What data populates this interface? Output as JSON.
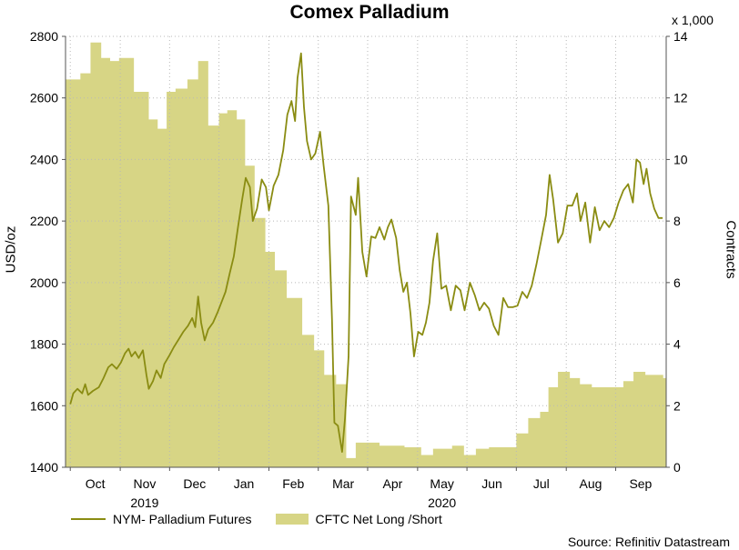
{
  "chart_data": {
    "type": "line",
    "title": "Comex Palladium",
    "ylabel_left": "USD/oz",
    "ylabel_right": "Contracts",
    "right_axis_multiplier": "x 1,000",
    "source": "Source: Refinitiv Datastream",
    "x_ticks": [
      "Oct",
      "Nov",
      "Dec",
      "Jan",
      "Feb",
      "Mar",
      "Apr",
      "May",
      "Jun",
      "Jul",
      "Aug",
      "Sep"
    ],
    "year_labels": [
      "2019",
      "2020"
    ],
    "ylim_left": [
      1400,
      2800
    ],
    "ylim_right": [
      0,
      14
    ],
    "yticks_left": [
      "1400",
      "1600",
      "1800",
      "2000",
      "2200",
      "2400",
      "2600",
      "2800"
    ],
    "yticks_right": [
      "0",
      "2",
      "4",
      "6",
      "8",
      "10",
      "12",
      "14"
    ],
    "grid": true,
    "legend_position": "bottom",
    "colors": {
      "line": "#8a8c12",
      "area": "#d7d585",
      "grid": "#b8b8b8"
    },
    "series": [
      {
        "name": "NYM- Palladium Futures",
        "kind": "line",
        "axis": "left",
        "points": [
          [
            2019.708,
            1605
          ],
          [
            2019.713,
            1640
          ],
          [
            2019.72,
            1655
          ],
          [
            2019.728,
            1640
          ],
          [
            2019.733,
            1670
          ],
          [
            2019.738,
            1635
          ],
          [
            2019.746,
            1648
          ],
          [
            2019.756,
            1660
          ],
          [
            2019.764,
            1690
          ],
          [
            2019.772,
            1725
          ],
          [
            2019.778,
            1735
          ],
          [
            2019.786,
            1720
          ],
          [
            2019.793,
            1740
          ],
          [
            2019.8,
            1770
          ],
          [
            2019.806,
            1785
          ],
          [
            2019.811,
            1760
          ],
          [
            2019.817,
            1775
          ],
          [
            2019.823,
            1755
          ],
          [
            2019.83,
            1780
          ],
          [
            2019.836,
            1700
          ],
          [
            2019.84,
            1655
          ],
          [
            2019.847,
            1680
          ],
          [
            2019.853,
            1715
          ],
          [
            2019.86,
            1690
          ],
          [
            2019.866,
            1735
          ],
          [
            2019.875,
            1765
          ],
          [
            2019.882,
            1790
          ],
          [
            2019.89,
            1815
          ],
          [
            2019.898,
            1840
          ],
          [
            2019.906,
            1860
          ],
          [
            2019.913,
            1885
          ],
          [
            2019.918,
            1855
          ],
          [
            2019.923,
            1955
          ],
          [
            2019.928,
            1870
          ],
          [
            2019.934,
            1812
          ],
          [
            2019.94,
            1848
          ],
          [
            2019.948,
            1870
          ],
          [
            2019.956,
            1905
          ],
          [
            2019.962,
            1935
          ],
          [
            2019.969,
            1970
          ],
          [
            2019.976,
            2030
          ],
          [
            2019.983,
            2085
          ],
          [
            2019.99,
            2180
          ],
          [
            2019.997,
            2270
          ],
          [
            2020.003,
            2340
          ],
          [
            2020.01,
            2310
          ],
          [
            2020.015,
            2200
          ],
          [
            2020.022,
            2240
          ],
          [
            2020.03,
            2335
          ],
          [
            2020.037,
            2310
          ],
          [
            2020.042,
            2235
          ],
          [
            2020.05,
            2315
          ],
          [
            2020.058,
            2350
          ],
          [
            2020.066,
            2430
          ],
          [
            2020.073,
            2545
          ],
          [
            2020.08,
            2590
          ],
          [
            2020.086,
            2525
          ],
          [
            2020.09,
            2665
          ],
          [
            2020.096,
            2745
          ],
          [
            2020.101,
            2570
          ],
          [
            2020.106,
            2460
          ],
          [
            2020.113,
            2400
          ],
          [
            2020.12,
            2420
          ],
          [
            2020.128,
            2490
          ],
          [
            2020.134,
            2380
          ],
          [
            2020.142,
            2250
          ],
          [
            2020.148,
            1880
          ],
          [
            2020.152,
            1545
          ],
          [
            2020.158,
            1535
          ],
          [
            2020.165,
            1450
          ],
          [
            2020.17,
            1560
          ],
          [
            2020.176,
            1760
          ],
          [
            2020.18,
            2280
          ],
          [
            2020.188,
            2220
          ],
          [
            2020.192,
            2340
          ],
          [
            2020.199,
            2100
          ],
          [
            2020.206,
            2020
          ],
          [
            2020.214,
            2150
          ],
          [
            2020.221,
            2145
          ],
          [
            2020.228,
            2180
          ],
          [
            2020.236,
            2140
          ],
          [
            2020.242,
            2180
          ],
          [
            2020.248,
            2205
          ],
          [
            2020.256,
            2145
          ],
          [
            2020.262,
            2040
          ],
          [
            2020.268,
            1970
          ],
          [
            2020.274,
            2000
          ],
          [
            2020.28,
            1900
          ],
          [
            2020.286,
            1760
          ],
          [
            2020.293,
            1840
          ],
          [
            2020.3,
            1830
          ],
          [
            2020.306,
            1870
          ],
          [
            2020.312,
            1935
          ],
          [
            2020.318,
            2070
          ],
          [
            2020.325,
            2160
          ],
          [
            2020.332,
            1980
          ],
          [
            2020.34,
            1990
          ],
          [
            2020.348,
            1910
          ],
          [
            2020.356,
            1990
          ],
          [
            2020.364,
            1975
          ],
          [
            2020.371,
            1910
          ],
          [
            2020.38,
            2000
          ],
          [
            2020.388,
            1960
          ],
          [
            2020.396,
            1910
          ],
          [
            2020.404,
            1935
          ],
          [
            2020.412,
            1915
          ],
          [
            2020.42,
            1860
          ],
          [
            2020.428,
            1830
          ],
          [
            2020.436,
            1950
          ],
          [
            2020.444,
            1920
          ],
          [
            2020.452,
            1920
          ],
          [
            2020.46,
            1925
          ],
          [
            2020.468,
            1970
          ],
          [
            2020.476,
            1950
          ],
          [
            2020.484,
            1990
          ],
          [
            2020.492,
            2060
          ],
          [
            2020.5,
            2140
          ],
          [
            2020.508,
            2220
          ],
          [
            2020.514,
            2350
          ],
          [
            2020.52,
            2270
          ],
          [
            2020.528,
            2130
          ],
          [
            2020.536,
            2160
          ],
          [
            2020.544,
            2250
          ],
          [
            2020.552,
            2250
          ],
          [
            2020.56,
            2290
          ],
          [
            2020.566,
            2200
          ],
          [
            2020.574,
            2260
          ],
          [
            2020.582,
            2130
          ],
          [
            2020.59,
            2245
          ],
          [
            2020.598,
            2170
          ],
          [
            2020.606,
            2200
          ],
          [
            2020.614,
            2180
          ],
          [
            2020.622,
            2210
          ],
          [
            2020.63,
            2260
          ],
          [
            2020.638,
            2300
          ],
          [
            2020.646,
            2320
          ],
          [
            2020.654,
            2260
          ],
          [
            2020.66,
            2400
          ],
          [
            2020.666,
            2390
          ],
          [
            2020.672,
            2320
          ],
          [
            2020.677,
            2370
          ],
          [
            2020.683,
            2290
          ],
          [
            2020.69,
            2240
          ],
          [
            2020.697,
            2210
          ],
          [
            2020.704,
            2210
          ]
        ]
      },
      {
        "name": "CFTC Net Long /Short",
        "kind": "area",
        "axis": "right",
        "points": [
          [
            2019.7,
            12.6
          ],
          [
            2019.725,
            12.8
          ],
          [
            2019.742,
            13.8
          ],
          [
            2019.76,
            13.3
          ],
          [
            2019.775,
            13.2
          ],
          [
            2019.79,
            13.3
          ],
          [
            2019.815,
            12.2
          ],
          [
            2019.84,
            11.3
          ],
          [
            2019.855,
            11.0
          ],
          [
            2019.87,
            12.2
          ],
          [
            2019.885,
            12.3
          ],
          [
            2019.905,
            12.6
          ],
          [
            2019.923,
            13.2
          ],
          [
            2019.94,
            11.1
          ],
          [
            2019.958,
            11.5
          ],
          [
            2019.972,
            11.6
          ],
          [
            2019.988,
            11.3
          ],
          [
            2020.002,
            9.8
          ],
          [
            2020.018,
            8.1
          ],
          [
            2020.036,
            7.0
          ],
          [
            2020.052,
            6.4
          ],
          [
            2020.072,
            5.5
          ],
          [
            2020.098,
            4.3
          ],
          [
            2020.118,
            3.8
          ],
          [
            2020.135,
            3.0
          ],
          [
            2020.155,
            2.7
          ],
          [
            2020.172,
            0.3
          ],
          [
            2020.188,
            0.8
          ],
          [
            2020.208,
            0.8
          ],
          [
            2020.228,
            0.7
          ],
          [
            2020.25,
            0.7
          ],
          [
            2020.27,
            0.65
          ],
          [
            2020.298,
            0.4
          ],
          [
            2020.318,
            0.6
          ],
          [
            2020.35,
            0.7
          ],
          [
            2020.37,
            0.4
          ],
          [
            2020.39,
            0.6
          ],
          [
            2020.412,
            0.65
          ],
          [
            2020.438,
            0.65
          ],
          [
            2020.458,
            1.1
          ],
          [
            2020.478,
            1.6
          ],
          [
            2020.498,
            1.8
          ],
          [
            2020.512,
            2.6
          ],
          [
            2020.528,
            3.1
          ],
          [
            2020.548,
            2.9
          ],
          [
            2020.565,
            2.7
          ],
          [
            2020.585,
            2.6
          ],
          [
            2020.615,
            2.6
          ],
          [
            2020.638,
            2.8
          ],
          [
            2020.655,
            3.1
          ],
          [
            2020.675,
            3.0
          ],
          [
            2020.705,
            2.9
          ]
        ]
      }
    ]
  }
}
